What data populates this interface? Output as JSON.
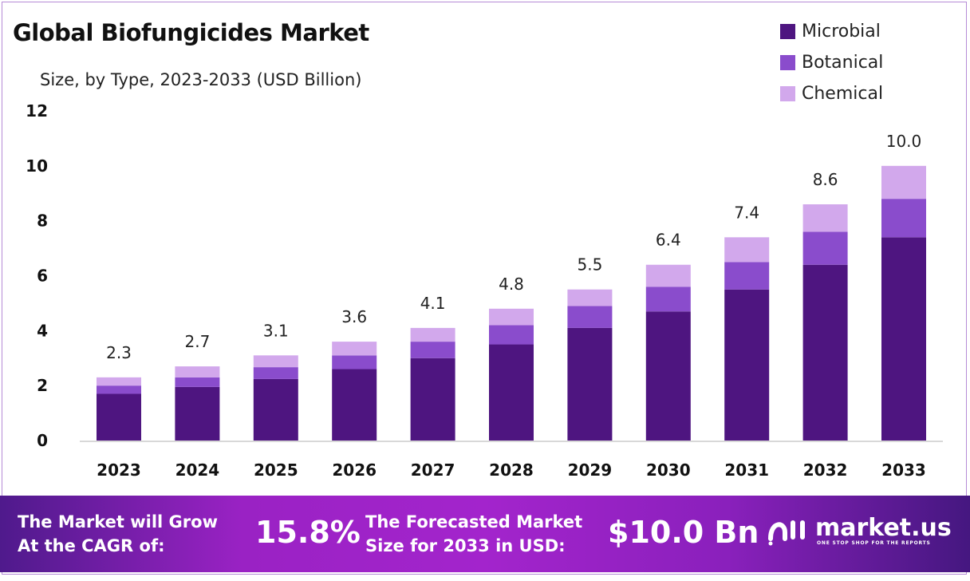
{
  "chart_data": {
    "type": "bar",
    "stacked": true,
    "title": "Global Biofungicides Market",
    "subtitle": "Size, by Type, 2023-2033 (USD Billion)",
    "categories": [
      "2023",
      "2024",
      "2025",
      "2026",
      "2027",
      "2028",
      "2029",
      "2030",
      "2031",
      "2032",
      "2033"
    ],
    "series": [
      {
        "name": "Microbial",
        "color": "#4e1580",
        "values": [
          1.7,
          1.95,
          2.24,
          2.6,
          3.0,
          3.5,
          4.1,
          4.7,
          5.5,
          6.4,
          7.4
        ]
      },
      {
        "name": "Botanical",
        "color": "#8a4ccc",
        "values": [
          0.3,
          0.35,
          0.43,
          0.5,
          0.6,
          0.7,
          0.8,
          0.9,
          1.0,
          1.2,
          1.4
        ]
      },
      {
        "name": "Chemical",
        "color": "#d2a8ec",
        "values": [
          0.3,
          0.4,
          0.43,
          0.5,
          0.5,
          0.6,
          0.6,
          0.8,
          0.9,
          1.0,
          1.2
        ]
      }
    ],
    "totals": [
      "2.3",
      "2.7",
      "3.1",
      "3.6",
      "4.1",
      "4.8",
      "5.5",
      "6.4",
      "7.4",
      "8.6",
      "10.0"
    ],
    "ylim": [
      0,
      12
    ],
    "yticks": [
      "0",
      "2",
      "4",
      "6",
      "8",
      "10",
      "12"
    ],
    "grid": false,
    "legend": "top-right"
  },
  "banner": {
    "cagr_text_1": "The Market will Grow",
    "cagr_text_2": "At the CAGR of:",
    "cagr_value": "15.8%",
    "forecast_text_1": "The Forecasted Market",
    "forecast_text_2": "Size for 2033 in USD:",
    "forecast_value": "$10.0 Bn",
    "logo_name": "market.us",
    "logo_tagline": "ONE STOP SHOP FOR THE REPORTS"
  }
}
